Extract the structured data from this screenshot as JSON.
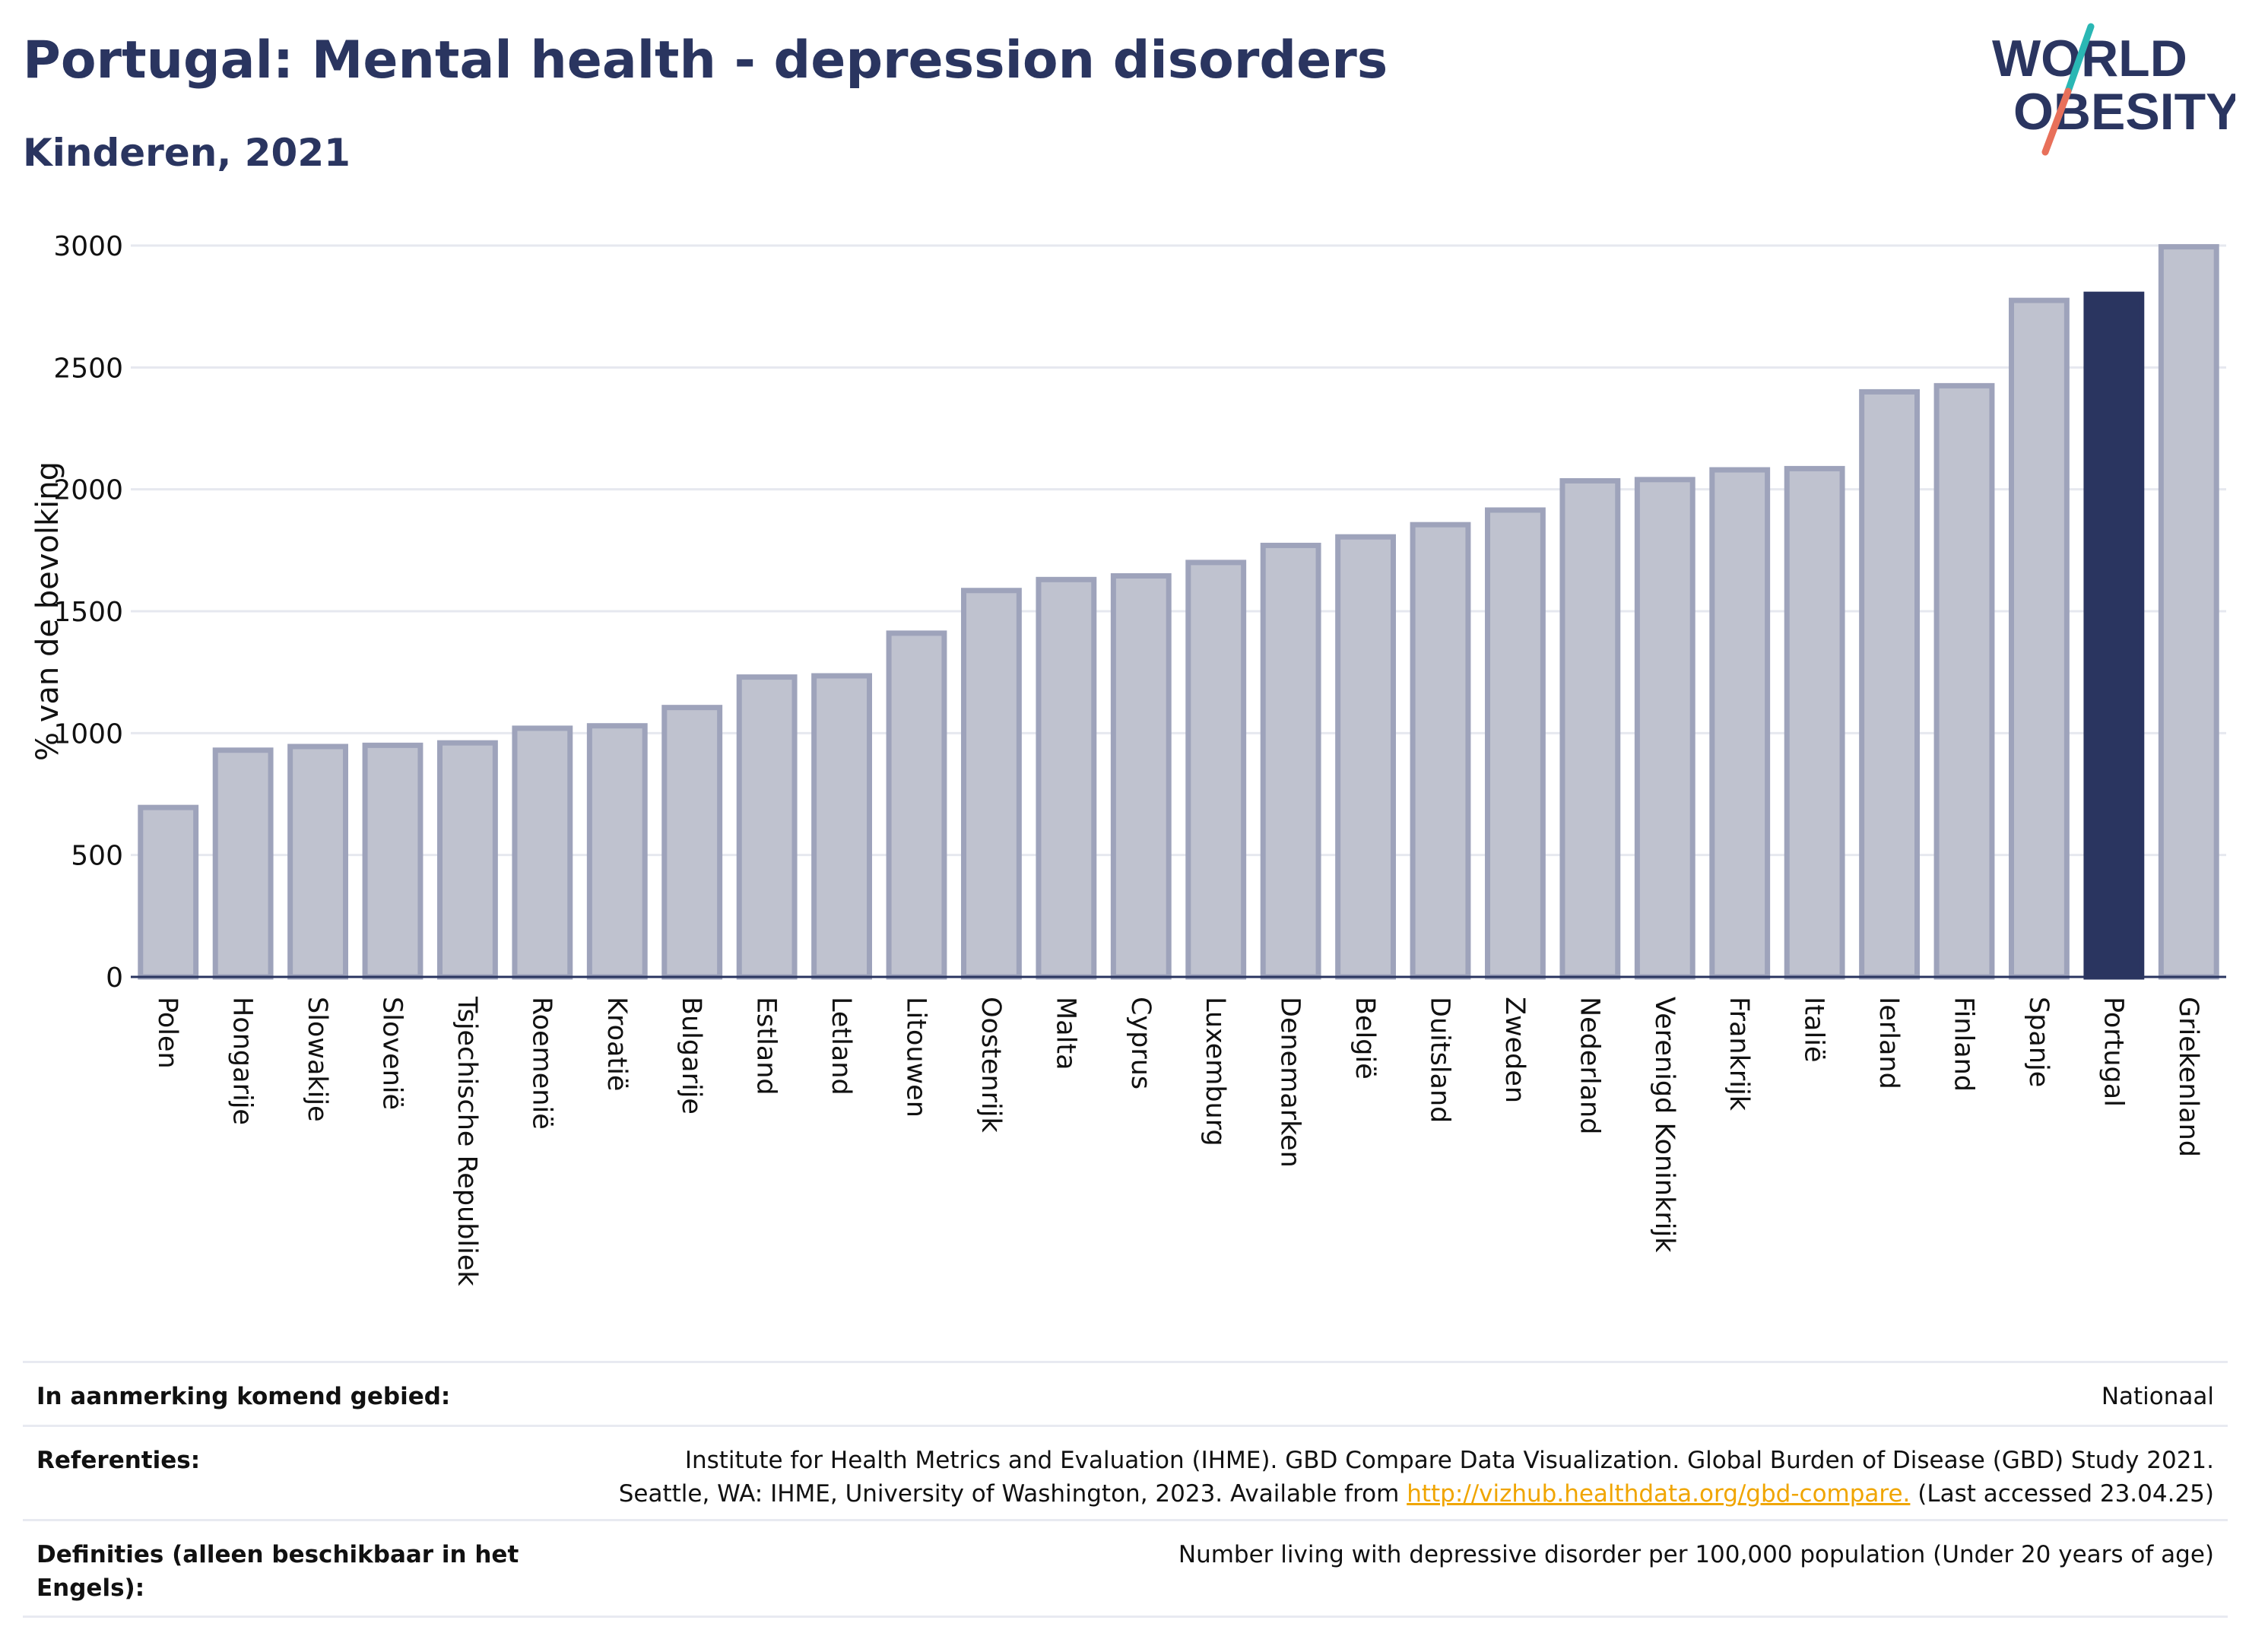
{
  "header": {
    "title": "Portugal: Mental health - depression disorders",
    "subtitle": "Kinderen, 2021",
    "logo_line1": "WORLD",
    "logo_line2": "OBESITY"
  },
  "colors": {
    "bar": "#bfc2cf",
    "bar_border": "#9ea3bb",
    "highlight": "#2a3560",
    "logo_teal": "#2ab7b4",
    "logo_coral": "#e8705a"
  },
  "chart_data": {
    "type": "bar",
    "title": "Portugal: Mental health - depression disorders",
    "subtitle": "Kinderen, 2021",
    "ylabel": "% van de bevolking",
    "xlabel": "",
    "ylim": [
      0,
      3000
    ],
    "yticks": [
      0,
      500,
      1000,
      1500,
      2000,
      2500,
      3000
    ],
    "grid": true,
    "highlight": "Portugal",
    "categories": [
      "Polen",
      "Hongarije",
      "Slowakije",
      "Slovenië",
      "Tsjechische Republiek",
      "Roemenië",
      "Kroatië",
      "Bulgarije",
      "Estland",
      "Letland",
      "Litouwen",
      "Oostenrijk",
      "Malta",
      "Cyprus",
      "Luxemburg",
      "Denemarken",
      "België",
      "Duitsland",
      "Zweden",
      "Nederland",
      "Verenigd Koninkrijk",
      "Frankrijk",
      "Italië",
      "Ierland",
      "Finland",
      "Spanje",
      "Portugal",
      "Griekenland"
    ],
    "values": [
      695,
      930,
      945,
      950,
      960,
      1020,
      1030,
      1105,
      1230,
      1235,
      1410,
      1585,
      1630,
      1645,
      1700,
      1770,
      1805,
      1855,
      1915,
      2035,
      2040,
      2080,
      2085,
      2400,
      2425,
      2775,
      2800,
      2995
    ]
  },
  "footer": {
    "rows": [
      {
        "label": "In aanmerking komend gebied:",
        "value": "Nationaal"
      },
      {
        "label": "Referenties:",
        "value_line1": "Institute for Health Metrics and Evaluation (IHME). GBD Compare Data Visualization. Global Burden of Disease (GBD) Study 2021.",
        "value_line2_pre": "Seattle, WA: IHME, University of Washington, 2023. Available from ",
        "link": "http://vizhub.healthdata.org/gbd-compare.",
        "value_line2_post": " (Last accessed 23.04.25)"
      },
      {
        "label_line1": "Definities (alleen beschikbaar in het",
        "label_line2": "Engels):",
        "value": "Number living with depressive disorder per 100,000 population (Under 20 years of age)"
      }
    ]
  }
}
